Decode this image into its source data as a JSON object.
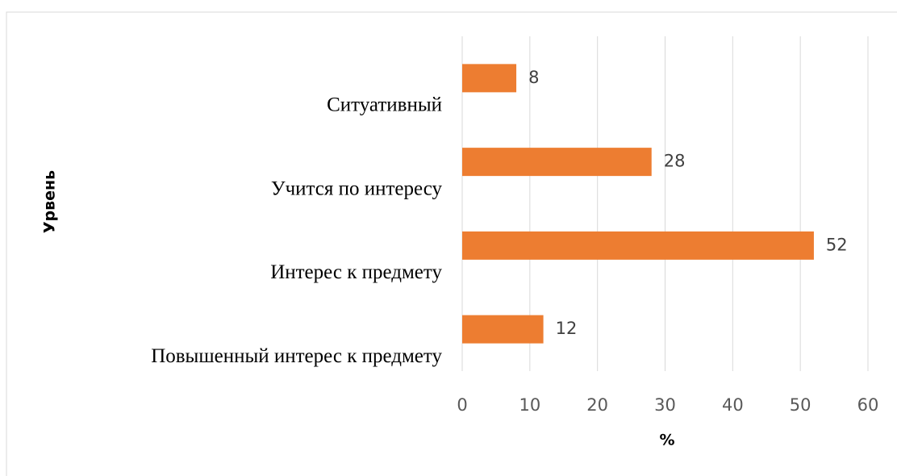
{
  "chart_data": {
    "type": "barh",
    "categories": [
      "Ситуативный",
      "Учится по интересу",
      "Интерес к предмету",
      "Повышенный интерес к предмету"
    ],
    "values": [
      8,
      28,
      52,
      12
    ],
    "color": "#ed7d31",
    "xlabel": "%",
    "ylabel": "Урвень",
    "xlim": [
      0,
      60
    ],
    "xticks": [
      0,
      10,
      20,
      30,
      40,
      50,
      60
    ],
    "grid": true
  }
}
